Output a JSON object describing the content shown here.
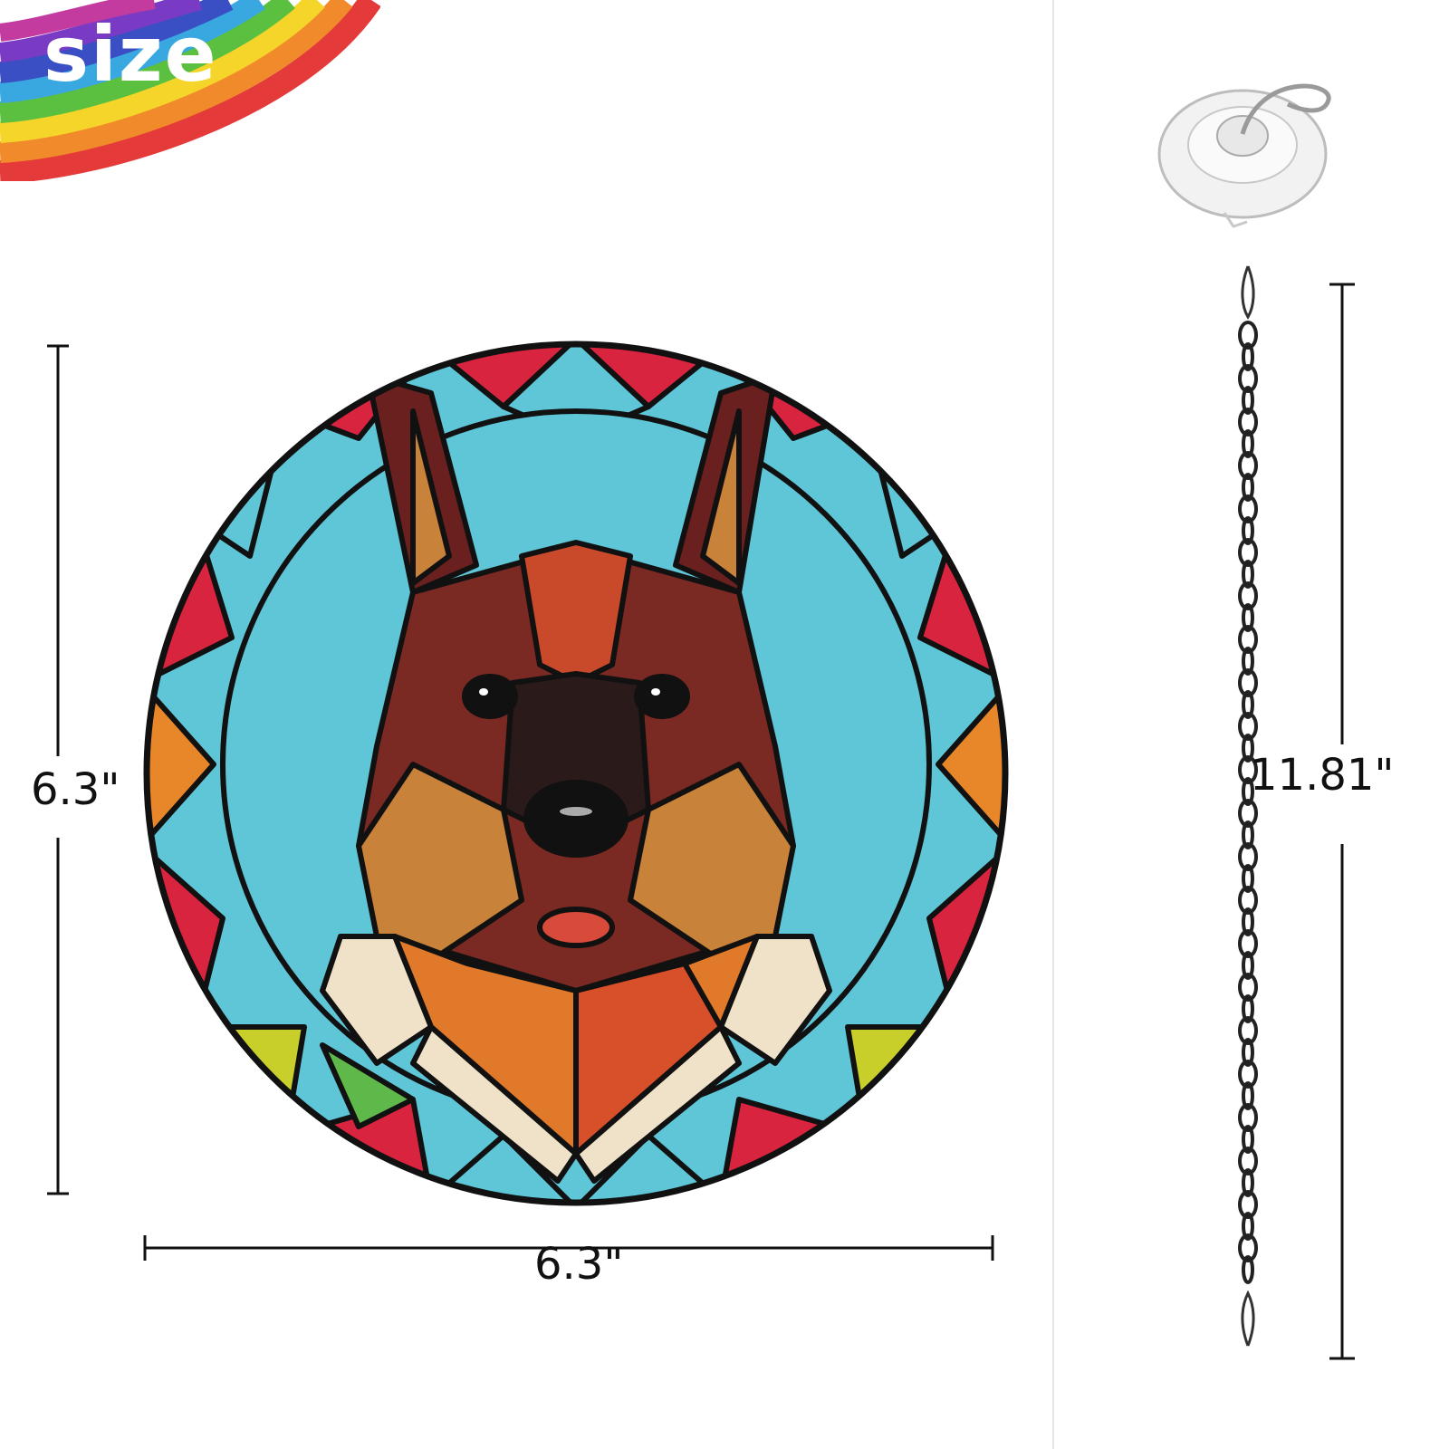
{
  "title": "size",
  "dimensions": {
    "height": "6.3\"",
    "width": "6.3\"",
    "chain_length": "11.81\""
  },
  "colors": {
    "red_glass": "#d8243f",
    "blue_glass": "#5fc6d8",
    "orange_glass": "#e8862a",
    "yellow_glass": "#c9cf2a",
    "green_glass": "#5fb84a",
    "dark_brown": "#5a1e1e",
    "tan": "#c9823a",
    "lead_line": "#111111"
  },
  "icons": {
    "product": "stained-glass-dog-suncatcher",
    "accessory_1": "suction-cup-hook-icon",
    "accessory_2": "hanging-chain-icon"
  }
}
